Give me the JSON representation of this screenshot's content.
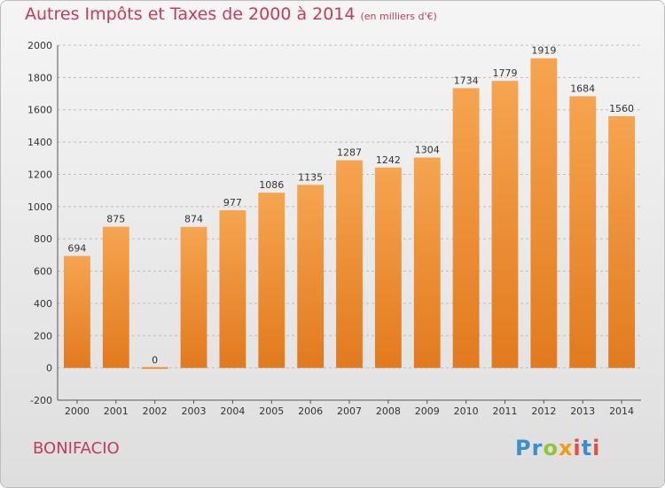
{
  "title": "Autres Impôts et Taxes de 2000 à 2014",
  "title_unit": "(en milliers d'€)",
  "commune": "BONIFACIO",
  "logo": {
    "letters": [
      "P",
      "r",
      "o",
      "x",
      "i",
      "t",
      "i"
    ],
    "colors": [
      "#3a8fd0",
      "#3a8fd0",
      "#8cc63f",
      "#f39c12",
      "#e84c3d",
      "#3a8fd0",
      "#e84c3d"
    ]
  },
  "colors": {
    "bar": "#f29b3f",
    "bar_dark": "#e07b1f",
    "title": "#c43b5c"
  },
  "chart_data": {
    "type": "bar",
    "title": "Autres Impôts et Taxes de 2000 à 2014",
    "categories": [
      "2000",
      "2001",
      "2002",
      "2003",
      "2004",
      "2005",
      "2006",
      "2007",
      "2008",
      "2009",
      "2010",
      "2011",
      "2012",
      "2013",
      "2014"
    ],
    "values": [
      694,
      875,
      0,
      874,
      977,
      1086,
      1135,
      1287,
      1242,
      1304,
      1734,
      1779,
      1919,
      1684,
      1560
    ],
    "ylim": [
      -200,
      2000
    ],
    "yticks": [
      -200,
      0,
      200,
      400,
      600,
      800,
      1000,
      1200,
      1400,
      1600,
      1800,
      2000
    ],
    "grid": true,
    "xlabel": "",
    "ylabel": ""
  }
}
